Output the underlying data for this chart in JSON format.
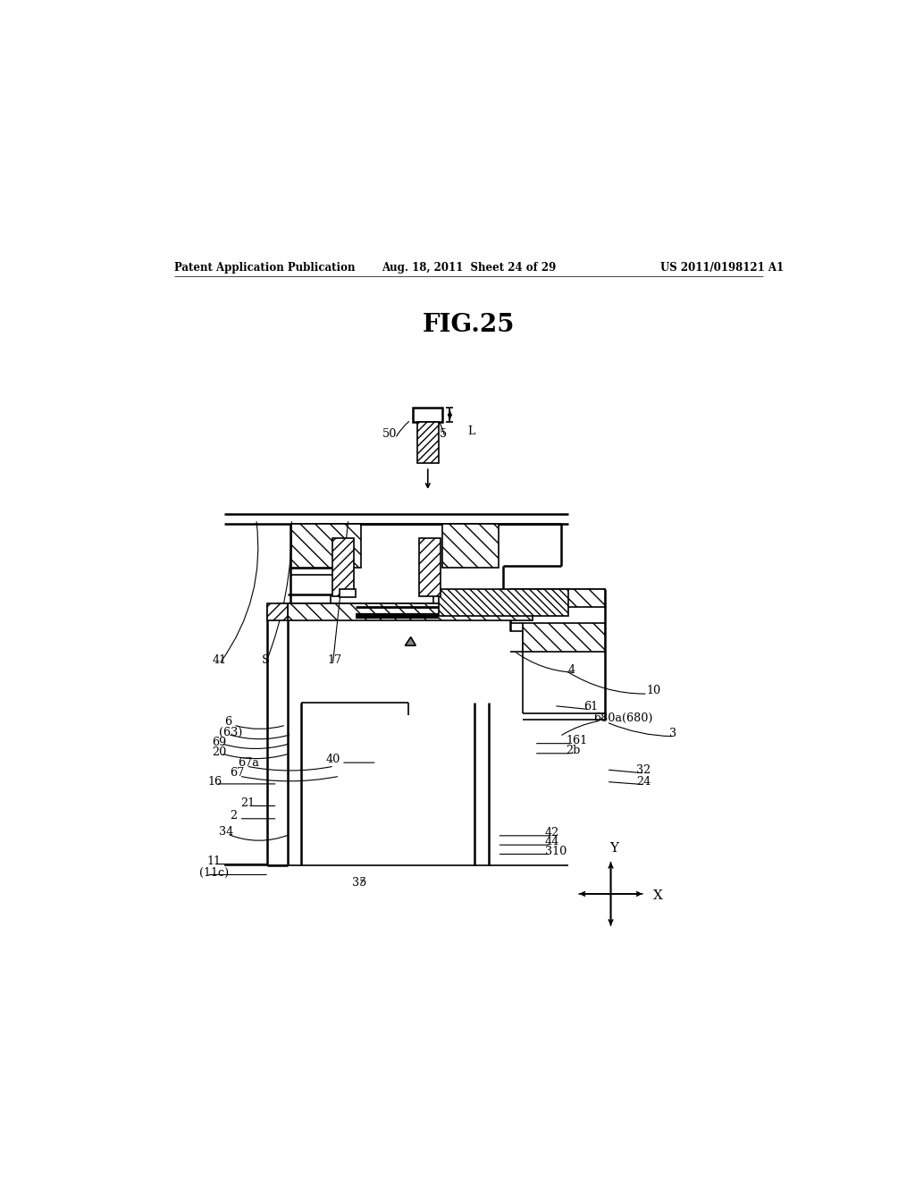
{
  "bg_color": "#ffffff",
  "header_left": "Patent Application Publication",
  "header_mid": "Aug. 18, 2011  Sheet 24 of 29",
  "header_right": "US 2011/0198121 A1",
  "title": "FIG.25"
}
